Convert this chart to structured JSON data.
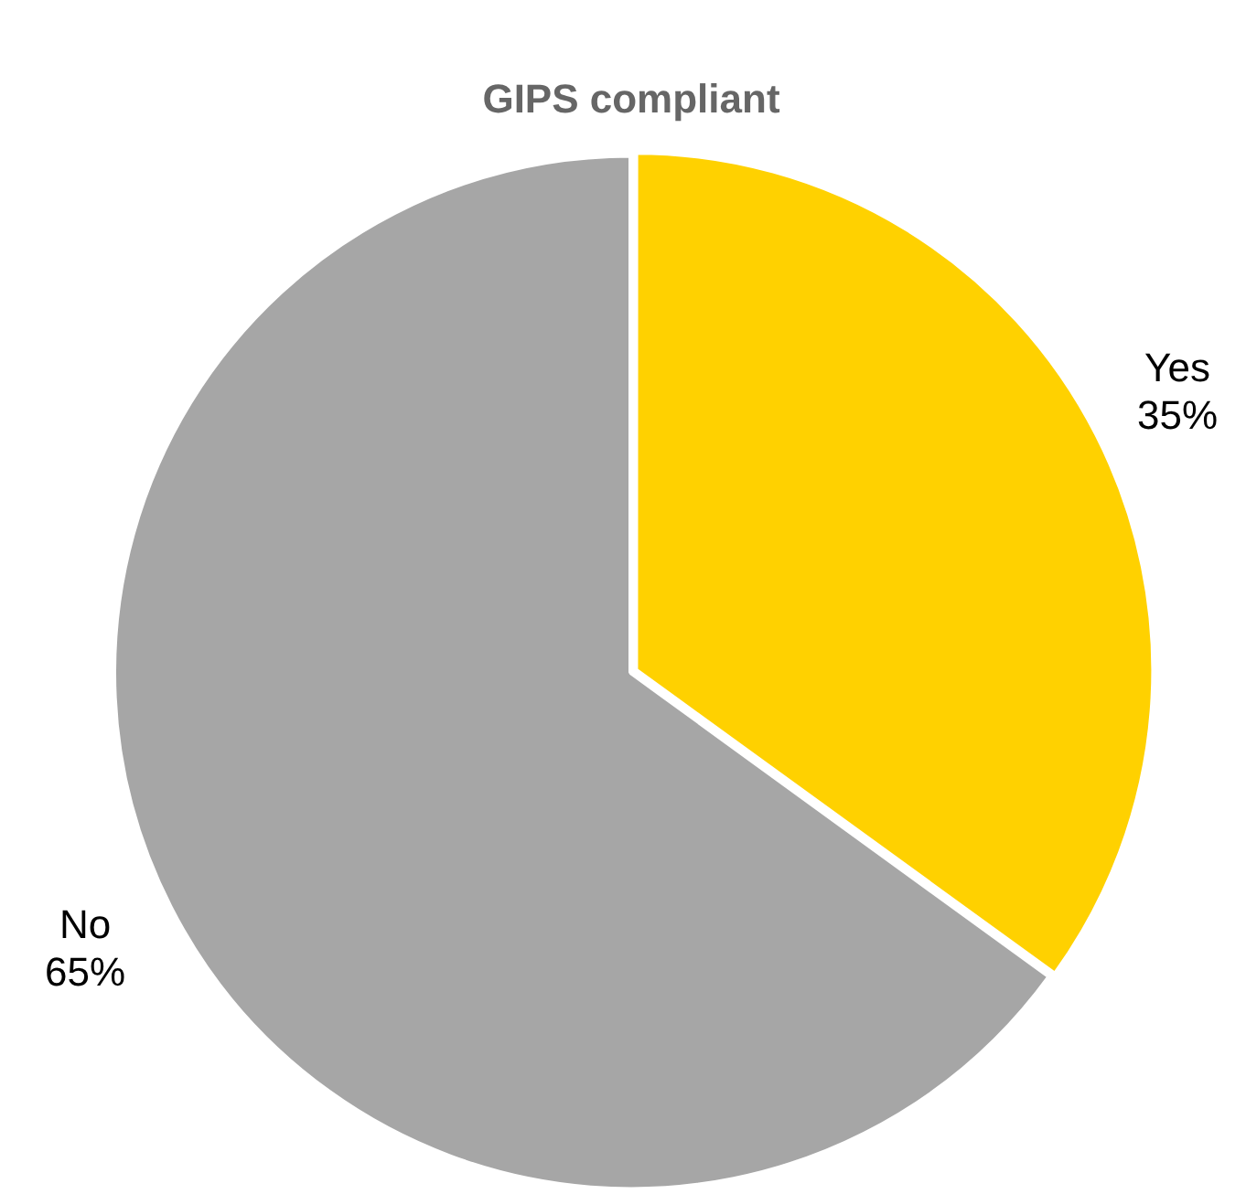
{
  "chart_data": {
    "type": "pie",
    "title": "GIPS compliant",
    "categories": [
      "Yes",
      "No"
    ],
    "values": [
      35,
      65
    ],
    "colors": [
      "#ffd100",
      "#a6a6a6"
    ],
    "value_labels": [
      "35%",
      "65%"
    ],
    "legend": false
  }
}
